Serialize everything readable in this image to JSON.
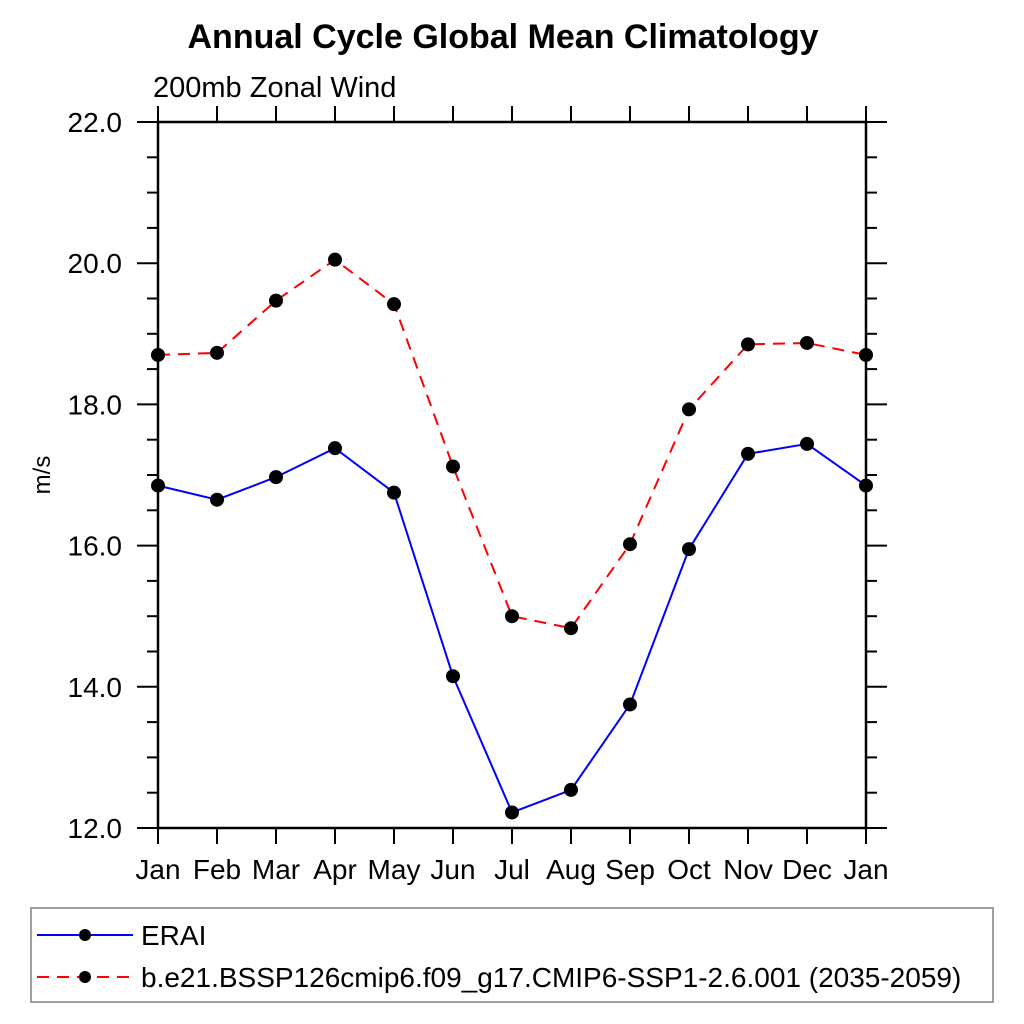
{
  "chart_data": {
    "type": "line",
    "title": "Annual Cycle Global Mean Climatology",
    "subtitle": "200mb Zonal Wind",
    "ylabel": "m/s",
    "categories": [
      "Jan",
      "Feb",
      "Mar",
      "Apr",
      "May",
      "Jun",
      "Jul",
      "Aug",
      "Sep",
      "Oct",
      "Nov",
      "Dec",
      "Jan"
    ],
    "series": [
      {
        "name": "ERAI",
        "color": "#0000ff",
        "line_style": "solid",
        "marker": "filled-circle",
        "marker_color": "#000000",
        "values": [
          16.85,
          16.65,
          16.97,
          17.38,
          16.75,
          14.15,
          12.22,
          12.54,
          13.75,
          15.95,
          17.3,
          17.44,
          16.85
        ]
      },
      {
        "name": "b.e21.BSSP126cmip6.f09_g17.CMIP6-SSP1-2.6.001 (2035-2059)",
        "color": "#ff0000",
        "line_style": "dashed",
        "marker": "filled-circle",
        "marker_color": "#000000",
        "values": [
          18.7,
          18.73,
          19.47,
          20.05,
          19.42,
          17.12,
          15.0,
          14.83,
          16.02,
          17.93,
          18.85,
          18.87,
          18.7
        ]
      }
    ],
    "ylim": [
      12.0,
      22.0
    ],
    "yticks": [
      12.0,
      14.0,
      16.0,
      18.0,
      20.0,
      22.0
    ],
    "ytick_labels": [
      "12.0",
      "14.0",
      "16.0",
      "18.0",
      "20.0",
      "22.0"
    ],
    "minor_tick_step": 0.5,
    "grid": false,
    "legend_position": "bottom-left-box",
    "axis_color": "#000000",
    "legend_border_color": "#808080"
  }
}
